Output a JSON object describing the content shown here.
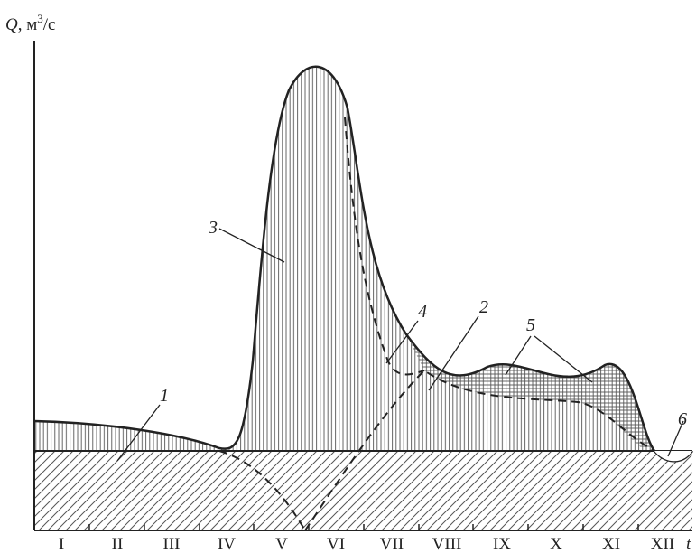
{
  "y_axis_title": {
    "var": "Q",
    "rest": ", м",
    "sup": "3",
    "unit": "/с"
  },
  "x_axis_var": "t",
  "months": [
    "I",
    "II",
    "III",
    "IV",
    "V",
    "VI",
    "VII",
    "VIII",
    "IX",
    "X",
    "XI",
    "XII"
  ],
  "callouts": [
    "1",
    "2",
    "3",
    "4",
    "5",
    "6"
  ],
  "colors": {
    "ink": "#222222",
    "background": "#ffffff"
  }
}
